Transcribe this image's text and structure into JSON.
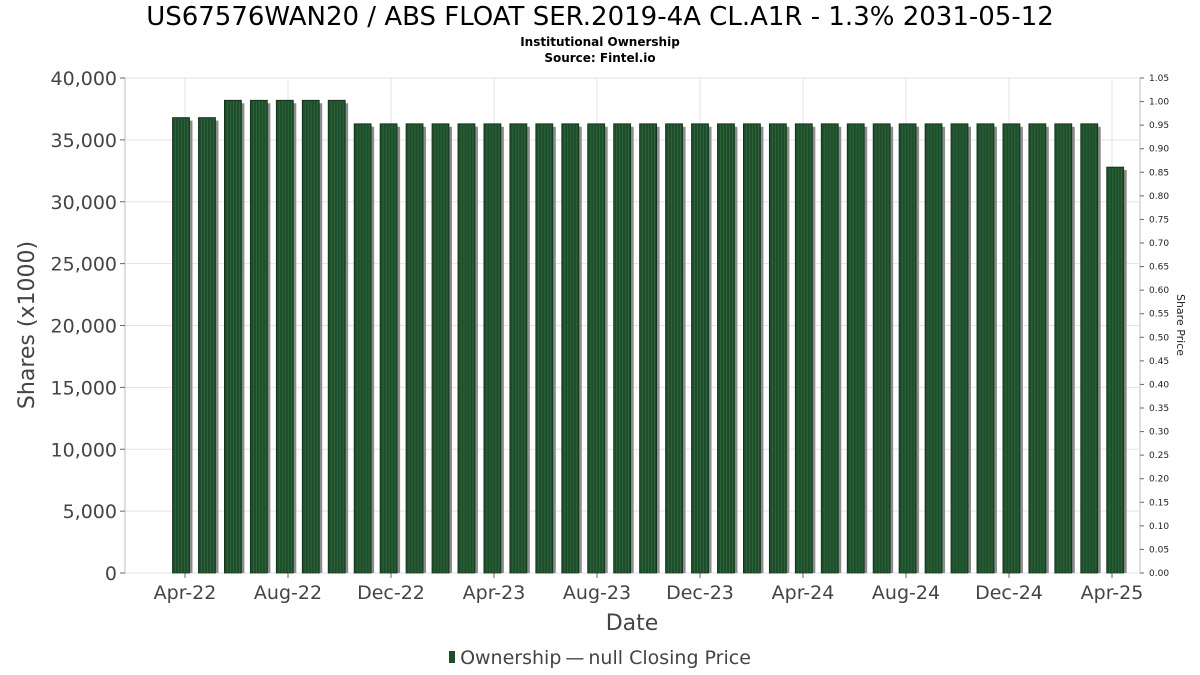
{
  "title": "US67576WAN20 / ABS FLOAT SER.2019-4A CL.A1R - 1.3% 2031-05-12",
  "subtitle1": "Institutional Ownership",
  "subtitle2": "Source: Fintel.io",
  "legend": {
    "ownership": "Ownership",
    "price": "null Closing Price"
  },
  "colors": {
    "bar": "#1f4d2b",
    "bar_light": "#2e6a3c",
    "shadow": "#8c8c8c",
    "grid": "#e3e3e3"
  },
  "chart_data": {
    "type": "bar",
    "xlabel": "Date",
    "ylabel": "Shares (x1000)",
    "y2label": "Share Price",
    "ylim": [
      0,
      40000
    ],
    "y2lim": [
      0,
      1.05
    ],
    "yticks": [
      "0",
      "5,000",
      "10,000",
      "15,000",
      "20,000",
      "25,000",
      "30,000",
      "35,000",
      "40,000"
    ],
    "y2ticks": [
      "0.00",
      "0.05",
      "0.10",
      "0.15",
      "0.20",
      "0.25",
      "0.30",
      "0.35",
      "0.40",
      "0.45",
      "0.50",
      "0.55",
      "0.60",
      "0.65",
      "0.70",
      "0.75",
      "0.80",
      "0.85",
      "0.90",
      "0.95",
      "1.00",
      "1.05"
    ],
    "xticks": [
      "Apr-22",
      "Aug-22",
      "Dec-22",
      "Apr-23",
      "Aug-23",
      "Dec-23",
      "Apr-24",
      "Aug-24",
      "Dec-24",
      "Apr-25"
    ],
    "grid": true,
    "legend_position": "bottom",
    "series": [
      {
        "name": "Ownership",
        "values": [
          36800,
          36800,
          38200,
          38200,
          38200,
          38200,
          38200,
          36300,
          36300,
          36300,
          36300,
          36300,
          36300,
          36300,
          36300,
          36300,
          36300,
          36300,
          36300,
          36300,
          36300,
          36300,
          36300,
          36300,
          36300,
          36300,
          36300,
          36300,
          36300,
          36300,
          36300,
          36300,
          36300,
          36300,
          36300,
          36300,
          32800
        ]
      }
    ]
  }
}
